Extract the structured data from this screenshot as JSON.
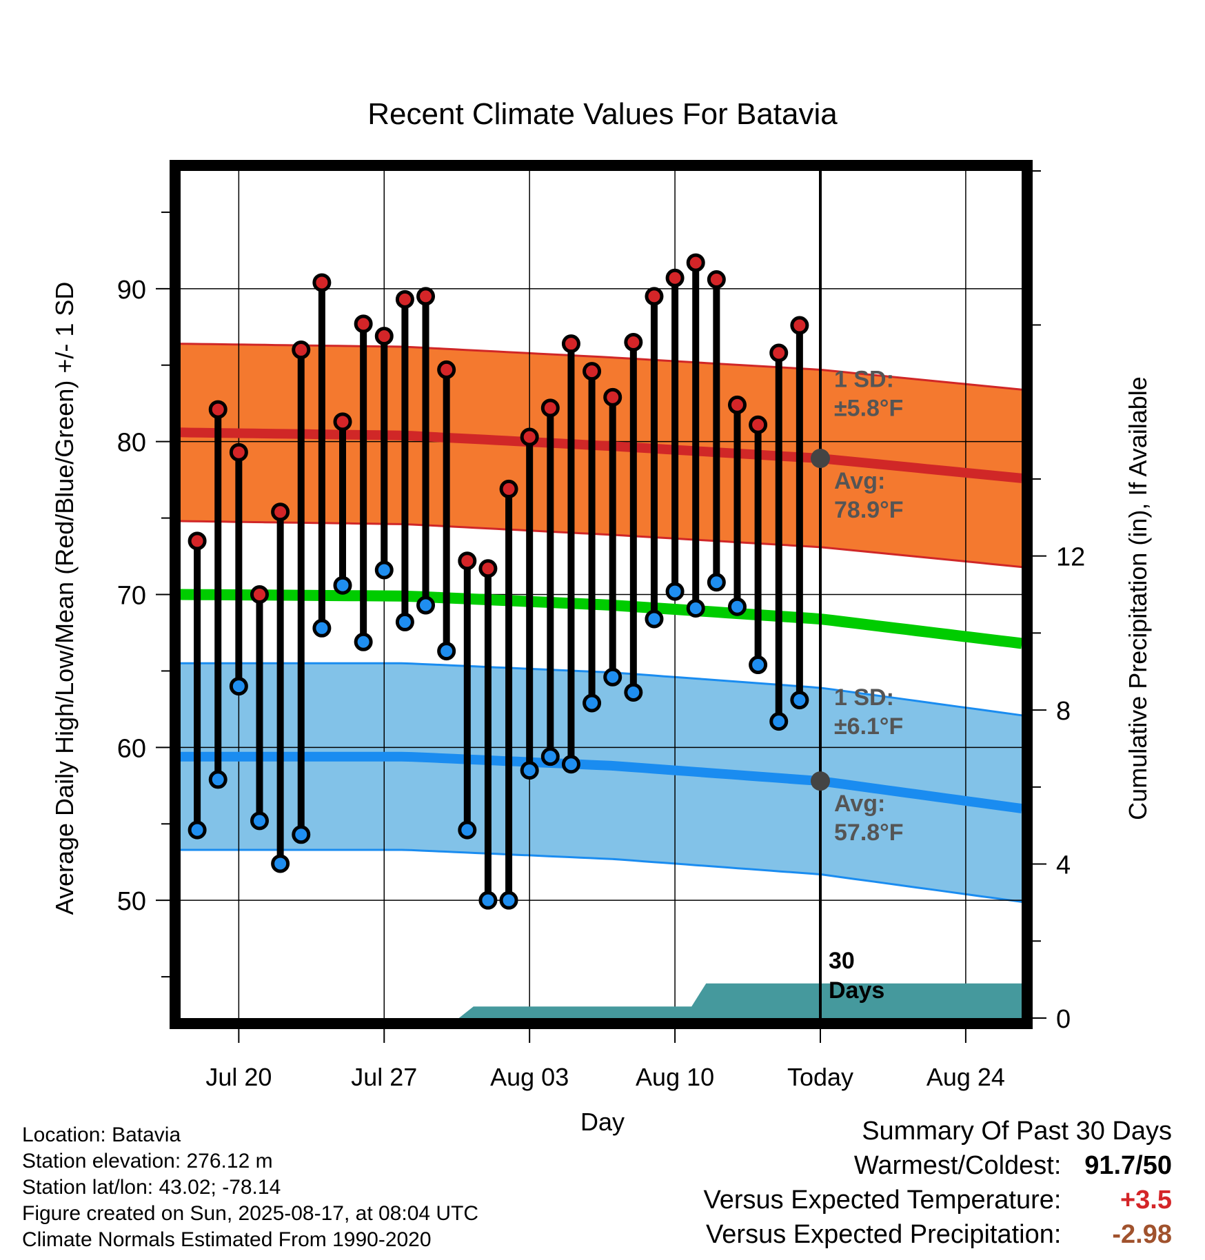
{
  "chart_data": {
    "type": "line",
    "title": "Recent Climate Values For Batavia",
    "xlabel": "Day",
    "ylabel": "Average Daily High/Low/Mean (Red/Blue/Green) +/- 1 SD",
    "y2label": "Cumulative Precipitation (in), If Available",
    "x_ticks": [
      "Jul 20",
      "Jul 27",
      "Aug 03",
      "Aug 10",
      "Today",
      "Aug 24"
    ],
    "y_ticks": [
      50,
      60,
      70,
      80,
      90
    ],
    "y2_ticks": [
      0,
      4,
      8,
      12
    ],
    "ylim": [
      42.3,
      97.7
    ],
    "y2lim": [
      0,
      22
    ],
    "x_range_days_from_today": [
      -30.8,
      9.7
    ],
    "grid": true,
    "days_offset": [
      -30,
      -29,
      -28,
      -27,
      -26,
      -25,
      -24,
      -23,
      -22,
      -21,
      -20,
      -19,
      -18,
      -17,
      -16,
      -15,
      -14,
      -13,
      -12,
      -11,
      -10,
      -9,
      -8,
      -7,
      -6,
      -5,
      -4,
      -3,
      -2,
      -1
    ],
    "daily_high": [
      73.5,
      82.1,
      79.3,
      70.0,
      75.4,
      86.0,
      90.4,
      81.3,
      87.7,
      86.9,
      89.3,
      89.5,
      84.7,
      72.2,
      71.7,
      76.9,
      80.3,
      82.2,
      86.4,
      84.6,
      82.9,
      86.5,
      89.5,
      90.7,
      91.7,
      90.6,
      82.4,
      81.1,
      85.8,
      87.6
    ],
    "daily_low": [
      54.6,
      57.9,
      64.0,
      55.2,
      52.4,
      54.3,
      67.8,
      70.6,
      66.9,
      71.6,
      68.2,
      69.3,
      66.3,
      54.6,
      50.0,
      50.0,
      58.5,
      59.4,
      58.9,
      62.9,
      64.6,
      63.6,
      68.4,
      70.2,
      69.1,
      70.8,
      69.2,
      65.4,
      61.7,
      63.1
    ],
    "normal_high_mean": {
      "x_offsets": [
        -30.8,
        -20,
        -10,
        0,
        9.7
      ],
      "values": [
        80.6,
        80.4,
        79.7,
        78.9,
        77.6
      ]
    },
    "normal_low_mean": {
      "x_offsets": [
        -30.8,
        -20,
        -10,
        0,
        9.7
      ],
      "values": [
        59.4,
        59.4,
        58.8,
        57.8,
        56.0
      ]
    },
    "normal_mean": {
      "x_offsets": [
        -30.8,
        -20,
        -10,
        0,
        9.7
      ],
      "values": [
        70.0,
        69.9,
        69.3,
        68.4,
        66.8
      ]
    },
    "high_sd": 5.8,
    "low_sd": 6.1,
    "cumulative_precipitation": {
      "x_offsets": [
        -30.8,
        -17.4,
        -16.7,
        -6.2,
        -5.5,
        9.7
      ],
      "values": [
        0,
        0,
        0.3,
        0.3,
        0.9,
        0.9
      ]
    },
    "today_line_label": "30 Days",
    "annotations": {
      "high_sd_label": "1 SD:",
      "high_sd_value": "±5.8°F",
      "high_avg_label": "Avg:",
      "high_avg_value": "78.9°F",
      "low_sd_label": "1 SD:",
      "low_sd_value": "±6.1°F",
      "low_avg_label": "Avg:",
      "low_avg_value": "57.8°F"
    },
    "colors": {
      "high_band": "#f4792f",
      "high_line": "#d02727",
      "low_band": "#82c2e8",
      "low_line": "#1a8cf0",
      "mean_line": "#00cc00",
      "precip": "#45999d",
      "high_dot": "#d42528",
      "low_dot": "#1f8ef0",
      "avg_dot": "#444444"
    }
  },
  "info": {
    "location": "Location: Batavia",
    "elevation": "Station elevation: 276.12 m",
    "latlon": "Station lat/lon: 43.02; -78.14",
    "created": "Figure created on Sun, 2025-08-17, at 08:04 UTC",
    "normals": "Climate Normals Estimated From 1990-2020"
  },
  "summary": {
    "title": "Summary Of Past 30 Days",
    "warm_cold_label": "Warmest/Coldest:",
    "warm_cold_value": "91.7/50",
    "temp_label": "Versus Expected Temperature:",
    "temp_value": "+3.5",
    "temp_color": "#d42528",
    "precip_label": "Versus Expected Precipitation:",
    "precip_value": "-2.98",
    "precip_color": "#a0522d"
  }
}
